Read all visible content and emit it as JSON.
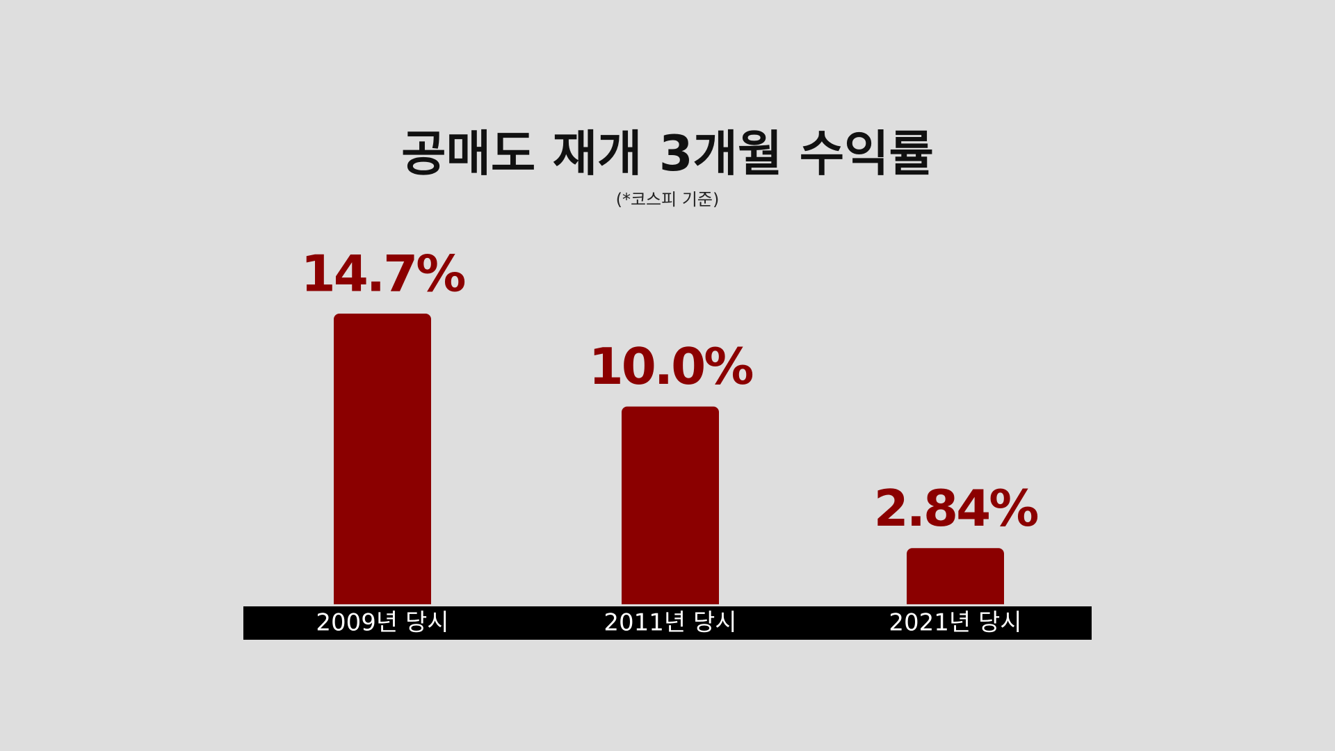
{
  "chart_data": {
    "type": "bar",
    "title": "공매도 재개 3개월 수익률",
    "subtitle": "(*코스피 기준)",
    "categories": [
      "2009년 당시",
      "2011년 당시",
      "2021년 당시"
    ],
    "values": [
      14.7,
      10.0,
      2.84
    ],
    "value_labels": [
      "14.7%",
      "10.0%",
      "2.84%"
    ],
    "color": "#8b0000"
  }
}
